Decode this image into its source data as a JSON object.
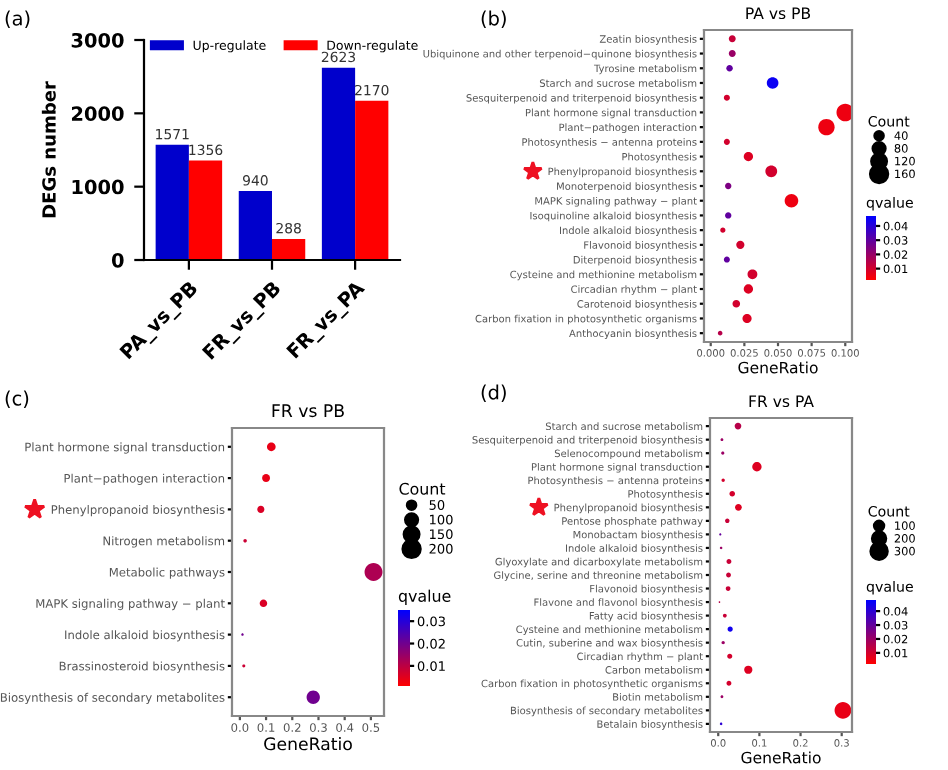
{
  "chart_data": [
    {
      "type": "bar",
      "annotations": [
        "(a)"
      ],
      "ylabel": "DEGs number",
      "categories": [
        "PA_vs_PB",
        "FR_vs_PB",
        "FR_vs_PA"
      ],
      "series": [
        {
          "name": "Up-regulate",
          "color": "#0000cc",
          "values": [
            1571,
            940,
            2623
          ]
        },
        {
          "name": "Down-regulate",
          "color": "#ff0000",
          "values": [
            1356,
            288,
            2170
          ]
        }
      ],
      "ylim": [
        0,
        3000
      ],
      "yticks": [
        0,
        1000,
        2000,
        3000
      ],
      "data_labels": true,
      "legend": "top"
    },
    {
      "type": "bubble",
      "orientation": "horizontal",
      "annotations": [
        "(b)"
      ],
      "title": "PA vs PB",
      "xlabel": "GeneRatio",
      "categories": [
        "Zeatin biosynthesis",
        "Ubiquinone and other terpenoid−quinone biosynthesis",
        "Tyrosine metabolism",
        "Starch and sucrose metabolism",
        "Sesquiterpenoid and triterpenoid biosynthesis",
        "Plant hormone signal transduction",
        "Plant−pathogen interaction",
        "Photosynthesis − antenna proteins",
        "Photosynthesis",
        "Phenylpropanoid biosynthesis",
        "Monoterpenoid biosynthesis",
        "MAPK signaling pathway − plant",
        "Isoquinoline alkaloid biosynthesis",
        "Indole alkaloid biosynthesis",
        "Flavonoid biosynthesis",
        "Diterpenoid biosynthesis",
        "Cysteine and methionine metabolism",
        "Circadian rhythm − plant",
        "Carotenoid biosynthesis",
        "Carbon fixation in photosynthetic organisms",
        "Anthocyanin biosynthesis"
      ],
      "values": [
        0.016,
        0.016,
        0.014,
        0.046,
        0.012,
        0.1,
        0.086,
        0.012,
        0.028,
        0.045,
        0.013,
        0.06,
        0.013,
        0.009,
        0.022,
        0.012,
        0.031,
        0.028,
        0.019,
        0.027,
        0.007
      ],
      "sizes": [
        25,
        25,
        22,
        70,
        19,
        160,
        138,
        19,
        45,
        72,
        21,
        96,
        21,
        14,
        35,
        19,
        50,
        45,
        30,
        43,
        11
      ],
      "cvalues": [
        0.012,
        0.02,
        0.03,
        0.045,
        0.01,
        0.005,
        0.005,
        0.01,
        0.008,
        0.01,
        0.025,
        0.005,
        0.03,
        0.01,
        0.01,
        0.03,
        0.01,
        0.008,
        0.01,
        0.008,
        0.015
      ],
      "xlim": [
        -0.005,
        0.105
      ],
      "xticks": [
        {
          "value": 0,
          "label": "0.000"
        },
        {
          "value": 0.025,
          "label": "0.025"
        },
        {
          "value": 0.05,
          "label": "0.050"
        },
        {
          "value": 0.075,
          "label": "0.075"
        },
        {
          "value": 0.1,
          "label": "0.100"
        }
      ],
      "legend_title": "Count",
      "size_legend": [
        40,
        80,
        120,
        160
      ],
      "clabel": "qvalue",
      "clim": [
        0.002,
        0.047
      ],
      "cticks": [
        0.01,
        0.02,
        0.03,
        0.04
      ]
    },
    {
      "type": "bubble",
      "orientation": "horizontal",
      "annotations": [
        "(c)"
      ],
      "title": "FR vs PB",
      "xlabel": "GeneRatio",
      "categories": [
        "Plant hormone signal transduction",
        "Plant−pathogen interaction",
        "Phenylpropanoid biosynthesis",
        "Nitrogen metabolism",
        "Metabolic pathways",
        "MAPK signaling pathway − plant",
        "Indole alkaloid biosynthesis",
        "Brassinosteroid biosynthesis",
        "Biosynthesis of secondary metabolites"
      ],
      "values": [
        0.12,
        0.1,
        0.08,
        0.02,
        0.51,
        0.09,
        0.01,
        0.015,
        0.28
      ],
      "sizes": [
        49,
        41,
        33,
        8,
        209,
        37,
        4,
        6,
        115
      ],
      "cvalues": [
        0.004,
        0.004,
        0.006,
        0.008,
        0.012,
        0.006,
        0.02,
        0.008,
        0.02
      ],
      "xlim": [
        -0.03,
        0.55
      ],
      "xticks": [
        {
          "value": 0,
          "label": "0.0"
        },
        0.1,
        0.2,
        0.3,
        0.4,
        0.5
      ],
      "legend_title": "Count",
      "size_legend": [
        50,
        100,
        150,
        200
      ],
      "clabel": "qvalue",
      "clim": [
        0.001,
        0.035
      ],
      "cticks": [
        0.01,
        0.02,
        0.03
      ]
    },
    {
      "type": "bubble",
      "orientation": "horizontal",
      "annotations": [
        "(d)"
      ],
      "title": "FR vs PA",
      "xlabel": "GeneRatio",
      "categories": [
        "Starch and sucrose metabolism",
        "Sesquiterpenoid and triterpenoid biosynthesis",
        "Selenocompound metabolism",
        "Plant hormone signal transduction",
        "Photosynthesis − antenna proteins",
        "Photosynthesis",
        "Phenylpropanoid biosynthesis",
        "Pentose phosphate pathway",
        "Monobactam biosynthesis",
        "Indole alkaloid biosynthesis",
        "Glyoxylate and dicarboxylate metabolism",
        "Glycine, serine and threonine metabolism",
        "Flavonoid biosynthesis",
        "Flavone and flavonol biosynthesis",
        "Fatty acid biosynthesis",
        "Cysteine and methionine metabolism",
        "Cutin, suberine and wax biosynthesis",
        "Circadian rhythm − plant",
        "Carbon metabolism",
        "Carbon fixation in photosynthetic organisms",
        "Biotin metabolism",
        "Biosynthesis of secondary metabolites",
        "Betalain biosynthesis"
      ],
      "values": [
        0.048,
        0.009,
        0.011,
        0.094,
        0.012,
        0.034,
        0.049,
        0.022,
        0.005,
        0.007,
        0.026,
        0.025,
        0.024,
        0.003,
        0.016,
        0.029,
        0.012,
        0.028,
        0.073,
        0.026,
        0.009,
        0.303,
        0.007
      ],
      "sizes": [
        48,
        9,
        11,
        94,
        12,
        34,
        49,
        22,
        5,
        7,
        26,
        25,
        24,
        3,
        16,
        29,
        12,
        28,
        73,
        26,
        9,
        303,
        7
      ],
      "cvalues": [
        0.015,
        0.02,
        0.02,
        0.008,
        0.01,
        0.01,
        0.008,
        0.012,
        0.03,
        0.02,
        0.012,
        0.012,
        0.012,
        0.015,
        0.012,
        0.045,
        0.02,
        0.01,
        0.008,
        0.01,
        0.02,
        0.006,
        0.04
      ],
      "xlim": [
        -0.02,
        0.325
      ],
      "xticks": [
        {
          "value": 0,
          "label": "0.0"
        },
        0.1,
        0.2,
        0.3
      ],
      "legend_title": "Count",
      "size_legend": [
        100,
        200,
        300
      ],
      "clabel": "qvalue",
      "clim": [
        0.002,
        0.048
      ],
      "cticks": [
        0.01,
        0.02,
        0.03,
        0.04
      ]
    }
  ]
}
